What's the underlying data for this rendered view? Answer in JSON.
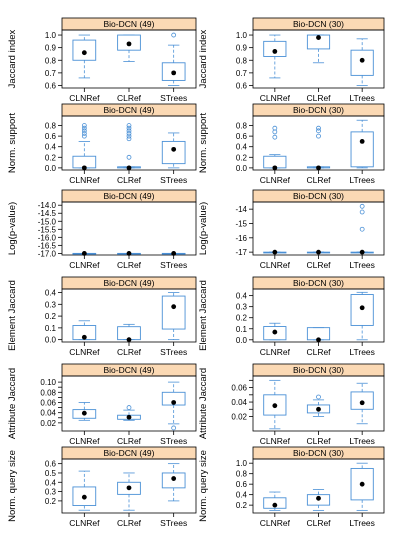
{
  "style": {
    "strip_fill": "#fbd9b4",
    "box_color": "#4a90d6",
    "median_color": "#000000",
    "axis_color": "#000000"
  },
  "chart_data": [
    {
      "type": "boxplot",
      "panel": "r1c1",
      "title": "Bio-DCN (49)",
      "ylabel": "Jaccard index",
      "ylim": [
        0.58,
        1.04
      ],
      "ticks": [
        0.6,
        0.7,
        0.8,
        0.9,
        1.0
      ],
      "tick_labels": [
        "0.6",
        "0.7",
        "0.8",
        "0.9",
        "1.0"
      ],
      "categories": [
        "CLNRef",
        "CLRef",
        "STrees"
      ],
      "boxes": [
        {
          "whisker_low": 0.66,
          "q1": 0.8,
          "median": 0.86,
          "q3": 0.96,
          "whisker_high": 1.0,
          "outliers": []
        },
        {
          "whisker_low": 0.79,
          "q1": 0.88,
          "median": 0.93,
          "q3": 1.0,
          "whisker_high": 1.0,
          "outliers": []
        },
        {
          "whisker_low": 0.6,
          "q1": 0.64,
          "median": 0.7,
          "q3": 0.78,
          "whisker_high": 0.92,
          "outliers": [
            1.0
          ]
        }
      ]
    },
    {
      "type": "boxplot",
      "panel": "r1c2",
      "title": "Bio-DCN (30)",
      "ylabel": "Jaccard index",
      "ylim": [
        0.58,
        1.04
      ],
      "ticks": [
        0.6,
        0.7,
        0.8,
        0.9,
        1.0
      ],
      "tick_labels": [
        "0.6",
        "0.7",
        "0.8",
        "0.9",
        "1.0"
      ],
      "categories": [
        "CLNRef",
        "CLRef",
        "LTrees"
      ],
      "boxes": [
        {
          "whisker_low": 0.66,
          "q1": 0.83,
          "median": 0.87,
          "q3": 0.95,
          "whisker_high": 1.0,
          "outliers": []
        },
        {
          "whisker_low": 0.78,
          "q1": 0.89,
          "median": 0.98,
          "q3": 1.0,
          "whisker_high": 1.0,
          "outliers": []
        },
        {
          "whisker_low": 0.6,
          "q1": 0.68,
          "median": 0.8,
          "q3": 0.88,
          "whisker_high": 0.97,
          "outliers": []
        }
      ]
    },
    {
      "type": "boxplot",
      "panel": "r2c1",
      "title": "Bio-DCN (49)",
      "ylabel": "Norm. support",
      "ylim": [
        -0.04,
        0.98
      ],
      "ticks": [
        0.0,
        0.2,
        0.4,
        0.6,
        0.8
      ],
      "tick_labels": [
        "0.0",
        "0.2",
        "0.4",
        "0.6",
        "0.8"
      ],
      "categories": [
        "CLNRef",
        "CLRef",
        "STrees"
      ],
      "boxes": [
        {
          "whisker_low": 0.0,
          "q1": 0.0,
          "median": 0.0,
          "q3": 0.22,
          "whisker_high": 0.5,
          "outliers": [
            0.6,
            0.65,
            0.7,
            0.75,
            0.8
          ]
        },
        {
          "whisker_low": 0.0,
          "q1": 0.0,
          "median": 0.0,
          "q3": 0.02,
          "whisker_high": 0.02,
          "outliers": [
            0.2,
            0.55,
            0.6,
            0.65,
            0.7,
            0.75,
            0.8
          ]
        },
        {
          "whisker_low": 0.0,
          "q1": 0.08,
          "median": 0.35,
          "q3": 0.5,
          "whisker_high": 0.66,
          "outliers": []
        }
      ]
    },
    {
      "type": "boxplot",
      "panel": "r2c2",
      "title": "Bio-DCN (30)",
      "ylabel": "Norm. support",
      "ylim": [
        -0.04,
        0.98
      ],
      "ticks": [
        0.0,
        0.2,
        0.4,
        0.6,
        0.8
      ],
      "tick_labels": [
        "0.0",
        "0.2",
        "0.4",
        "0.6",
        "0.8"
      ],
      "categories": [
        "CLNRef",
        "CLRef",
        "LTrees"
      ],
      "boxes": [
        {
          "whisker_low": 0.0,
          "q1": 0.0,
          "median": 0.0,
          "q3": 0.22,
          "whisker_high": 0.25,
          "outliers": [
            0.58,
            0.68,
            0.75
          ]
        },
        {
          "whisker_low": 0.0,
          "q1": 0.0,
          "median": 0.0,
          "q3": 0.02,
          "whisker_high": 0.02,
          "outliers": [
            0.6,
            0.7,
            0.75
          ]
        },
        {
          "whisker_low": 0.0,
          "q1": 0.02,
          "median": 0.5,
          "q3": 0.68,
          "whisker_high": 0.9,
          "outliers": []
        }
      ]
    },
    {
      "type": "boxplot",
      "panel": "r3c1",
      "title": "Bio-DCN (49)",
      "ylabel": "Log(p-value)",
      "ylim": [
        -17.1,
        -13.8
      ],
      "ticks": [
        -17.0,
        -16.5,
        -16.0,
        -15.5,
        -15.0,
        -14.5,
        -14.0
      ],
      "tick_labels": [
        "-17.0",
        "-16.5",
        "-16.0",
        "-15.5",
        "-15.0",
        "-14.5",
        "-14.0"
      ],
      "categories": [
        "CLNRef",
        "CLRef",
        "STrees"
      ],
      "boxes": [
        {
          "whisker_low": -17.0,
          "q1": -17.0,
          "median": -17.0,
          "q3": -17.0,
          "whisker_high": -17.0,
          "outliers": []
        },
        {
          "whisker_low": -17.0,
          "q1": -17.0,
          "median": -17.0,
          "q3": -17.0,
          "whisker_high": -17.0,
          "outliers": []
        },
        {
          "whisker_low": -17.0,
          "q1": -17.0,
          "median": -17.0,
          "q3": -17.0,
          "whisker_high": -17.0,
          "outliers": []
        }
      ]
    },
    {
      "type": "boxplot",
      "panel": "r3c2",
      "title": "Bio-DCN (30)",
      "ylabel": "Log(p-value)",
      "ylim": [
        -17.2,
        -13.5
      ],
      "ticks": [
        -17,
        -16,
        -15,
        -14
      ],
      "tick_labels": [
        "-17",
        "-16",
        "-15",
        "-14"
      ],
      "categories": [
        "CLNRef",
        "CLRef",
        "LTrees"
      ],
      "boxes": [
        {
          "whisker_low": -17.0,
          "q1": -17.0,
          "median": -17.0,
          "q3": -17.0,
          "whisker_high": -17.0,
          "outliers": []
        },
        {
          "whisker_low": -17.0,
          "q1": -17.0,
          "median": -17.0,
          "q3": -17.0,
          "whisker_high": -17.0,
          "outliers": []
        },
        {
          "whisker_low": -17.0,
          "q1": -17.0,
          "median": -17.0,
          "q3": -17.0,
          "whisker_high": -17.0,
          "outliers": [
            -13.8,
            -14.2,
            -15.4
          ]
        }
      ]
    },
    {
      "type": "boxplot",
      "panel": "r4c1",
      "title": "Bio-DCN (49)",
      "ylabel": "Element Jaccard",
      "ylim": [
        -0.02,
        0.43
      ],
      "ticks": [
        0.0,
        0.1,
        0.2,
        0.3,
        0.4
      ],
      "tick_labels": [
        "0.0",
        "0.1",
        "0.2",
        "0.3",
        "0.4"
      ],
      "categories": [
        "CLNRef",
        "CLRef",
        "STrees"
      ],
      "boxes": [
        {
          "whisker_low": 0.0,
          "q1": 0.0,
          "median": 0.02,
          "q3": 0.12,
          "whisker_high": 0.16,
          "outliers": []
        },
        {
          "whisker_low": 0.0,
          "q1": 0.0,
          "median": 0.0,
          "q3": 0.11,
          "whisker_high": 0.13,
          "outliers": []
        },
        {
          "whisker_low": 0.0,
          "q1": 0.09,
          "median": 0.28,
          "q3": 0.37,
          "whisker_high": 0.4,
          "outliers": []
        }
      ]
    },
    {
      "type": "boxplot",
      "panel": "r4c2",
      "title": "Bio-DCN (30)",
      "ylabel": "Element Jaccard",
      "ylim": [
        -0.02,
        0.46
      ],
      "ticks": [
        0.0,
        0.1,
        0.2,
        0.3,
        0.4
      ],
      "tick_labels": [
        "0.0",
        "0.1",
        "0.2",
        "0.3",
        "0.4"
      ],
      "categories": [
        "CLNRef",
        "CLRef",
        "LTrees"
      ],
      "boxes": [
        {
          "whisker_low": 0.0,
          "q1": 0.0,
          "median": 0.07,
          "q3": 0.12,
          "whisker_high": 0.15,
          "outliers": []
        },
        {
          "whisker_low": 0.0,
          "q1": 0.0,
          "median": 0.0,
          "q3": 0.11,
          "whisker_high": 0.11,
          "outliers": []
        },
        {
          "whisker_low": 0.0,
          "q1": 0.13,
          "median": 0.29,
          "q3": 0.41,
          "whisker_high": 0.43,
          "outliers": []
        }
      ]
    },
    {
      "type": "boxplot",
      "panel": "r5c1",
      "title": "Bio-DCN (49)",
      "ylabel": "Attribute Jaccard",
      "ylim": [
        0.004,
        0.112
      ],
      "ticks": [
        0.02,
        0.03,
        0.04,
        0.05,
        0.06,
        0.07,
        0.08,
        0.09,
        0.1
      ],
      "tick_labels": [
        "0.02",
        "",
        "0.04",
        "",
        "0.06",
        "",
        "0.08",
        "",
        "0.10"
      ],
      "categories": [
        "CLNRef",
        "CLRef",
        "STrees"
      ],
      "boxes": [
        {
          "whisker_low": 0.025,
          "q1": 0.029,
          "median": 0.039,
          "q3": 0.046,
          "whisker_high": 0.06,
          "outliers": []
        },
        {
          "whisker_low": 0.025,
          "q1": 0.027,
          "median": 0.031,
          "q3": 0.035,
          "whisker_high": 0.045,
          "outliers": [
            0.05
          ]
        },
        {
          "whisker_low": 0.018,
          "q1": 0.055,
          "median": 0.06,
          "q3": 0.08,
          "whisker_high": 0.1,
          "outliers": [
            0.01
          ]
        }
      ]
    },
    {
      "type": "boxplot",
      "panel": "r5c2",
      "title": "Bio-DCN (30)",
      "ylabel": "Attribute Jaccard",
      "ylim": [
        0.0,
        0.076
      ],
      "ticks": [
        0.02,
        0.03,
        0.04,
        0.05,
        0.06,
        0.07
      ],
      "tick_labels": [
        "0.02",
        "",
        "0.04",
        "",
        "0.06",
        ""
      ],
      "categories": [
        "CLNRef",
        "CLRef",
        "LTrees"
      ],
      "boxes": [
        {
          "whisker_low": 0.003,
          "q1": 0.022,
          "median": 0.035,
          "q3": 0.05,
          "whisker_high": 0.07,
          "outliers": []
        },
        {
          "whisker_low": 0.02,
          "q1": 0.025,
          "median": 0.03,
          "q3": 0.036,
          "whisker_high": 0.043,
          "outliers": [
            0.047
          ]
        },
        {
          "whisker_low": 0.01,
          "q1": 0.03,
          "median": 0.039,
          "q3": 0.054,
          "whisker_high": 0.066,
          "outliers": []
        }
      ]
    },
    {
      "type": "boxplot",
      "panel": "r6c1",
      "title": "Bio-DCN (49)",
      "ylabel": "Norm. query size",
      "ylim": [
        0.07,
        0.65
      ],
      "ticks": [
        0.2,
        0.3,
        0.4,
        0.5,
        0.6
      ],
      "tick_labels": [
        "0.2",
        "0.3",
        "0.4",
        "0.5",
        "0.6"
      ],
      "categories": [
        "CLNRef",
        "CLRef",
        "STrees"
      ],
      "boxes": [
        {
          "whisker_low": 0.1,
          "q1": 0.15,
          "median": 0.24,
          "q3": 0.35,
          "whisker_high": 0.52,
          "outliers": []
        },
        {
          "whisker_low": 0.1,
          "q1": 0.27,
          "median": 0.34,
          "q3": 0.4,
          "whisker_high": 0.5,
          "outliers": []
        },
        {
          "whisker_low": 0.2,
          "q1": 0.34,
          "median": 0.44,
          "q3": 0.5,
          "whisker_high": 0.6,
          "outliers": []
        }
      ]
    },
    {
      "type": "boxplot",
      "panel": "r6c2",
      "title": "Bio-DCN (30)",
      "ylabel": "Norm. query size",
      "ylim": [
        0.05,
        1.08
      ],
      "ticks": [
        0.2,
        0.4,
        0.6,
        0.8,
        1.0
      ],
      "tick_labels": [
        "0.2",
        "0.4",
        "0.6",
        "0.8",
        "1.0"
      ],
      "categories": [
        "CLNRef",
        "CLRef",
        "LTrees"
      ],
      "boxes": [
        {
          "whisker_low": 0.1,
          "q1": 0.14,
          "median": 0.2,
          "q3": 0.34,
          "whisker_high": 0.45,
          "outliers": []
        },
        {
          "whisker_low": 0.1,
          "q1": 0.2,
          "median": 0.33,
          "q3": 0.4,
          "whisker_high": 0.5,
          "outliers": []
        },
        {
          "whisker_low": 0.1,
          "q1": 0.3,
          "median": 0.6,
          "q3": 0.9,
          "whisker_high": 1.0,
          "outliers": []
        }
      ]
    }
  ]
}
